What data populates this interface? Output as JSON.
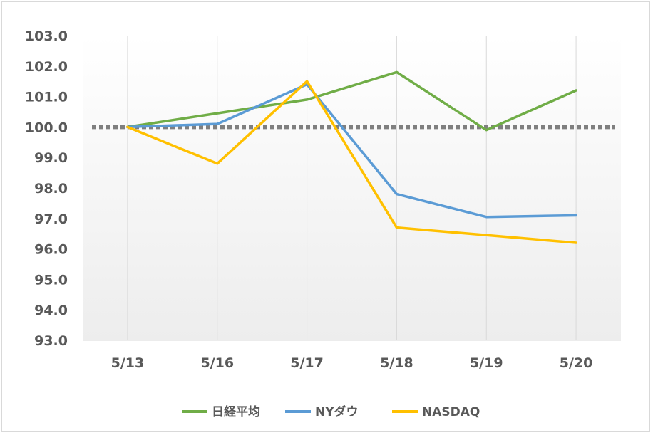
{
  "chart_data": {
    "type": "line",
    "categories": [
      "5/13",
      "5/16",
      "5/17",
      "5/18",
      "5/19",
      "5/20"
    ],
    "ylim": [
      93.0,
      103.0
    ],
    "ytick_step": 1.0,
    "y_tick_labels": [
      "93.0",
      "94.0",
      "95.0",
      "96.0",
      "97.0",
      "98.0",
      "99.0",
      "100.0",
      "101.0",
      "102.0",
      "103.0"
    ],
    "grid": "vertical",
    "legend_position": "bottom",
    "reference_line": {
      "value": 100.0,
      "style": "dotted",
      "color": "#7f7f7f"
    },
    "series": [
      {
        "name": "日経平均",
        "color": "#70ad47",
        "values": [
          100.0,
          100.45,
          100.9,
          101.8,
          99.9,
          101.2
        ]
      },
      {
        "name": "NYダウ",
        "color": "#5b9bd5",
        "values": [
          100.0,
          100.1,
          101.4,
          97.8,
          97.05,
          97.1
        ]
      },
      {
        "name": "NASDAQ",
        "color": "#ffc000",
        "values": [
          100.0,
          98.8,
          101.5,
          96.7,
          96.45,
          96.2
        ]
      }
    ]
  }
}
